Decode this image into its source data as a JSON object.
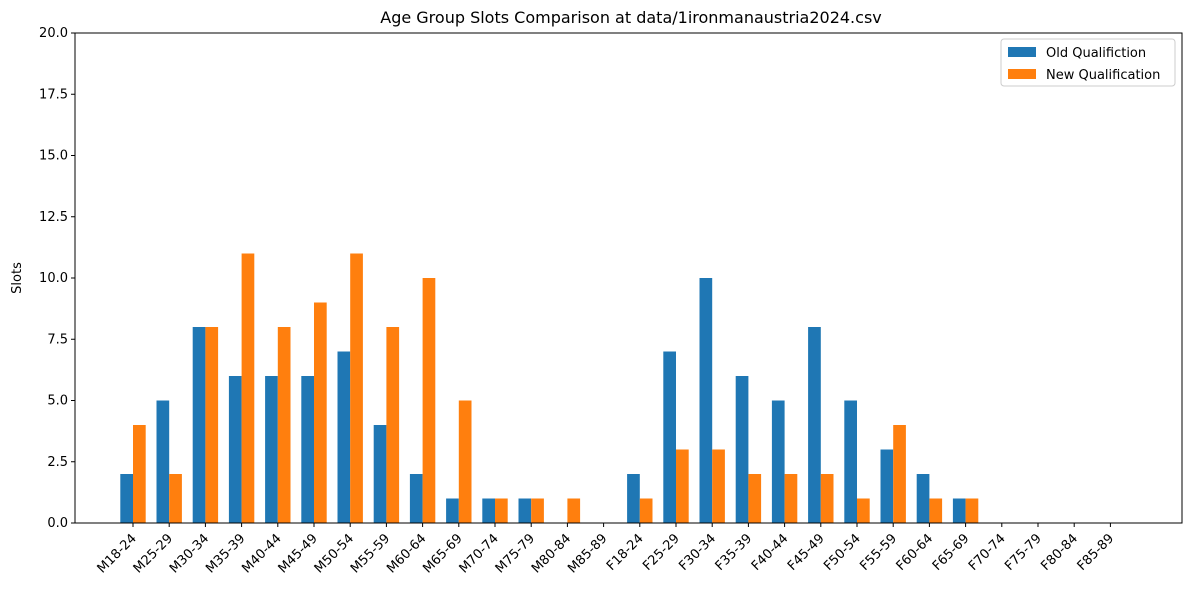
{
  "chart_data": {
    "type": "bar",
    "title": "Age Group Slots Comparison at data/1ironmanaustria2024.csv",
    "xlabel": "",
    "ylabel": "Slots",
    "ylim": [
      0,
      20
    ],
    "yticks": [
      0.0,
      2.5,
      5.0,
      7.5,
      10.0,
      12.5,
      15.0,
      17.5,
      20.0
    ],
    "ytick_labels": [
      "0.0",
      "2.5",
      "5.0",
      "7.5",
      "10.0",
      "12.5",
      "15.0",
      "17.5",
      "20.0"
    ],
    "categories": [
      "M18-24",
      "M25-29",
      "M30-34",
      "M35-39",
      "M40-44",
      "M45-49",
      "M50-54",
      "M55-59",
      "M60-64",
      "M65-69",
      "M70-74",
      "M75-79",
      "M80-84",
      "M85-89",
      "F18-24",
      "F25-29",
      "F30-34",
      "F35-39",
      "F40-44",
      "F45-49",
      "F50-54",
      "F55-59",
      "F60-64",
      "F65-69",
      "F70-74",
      "F75-79",
      "F80-84",
      "F85-89"
    ],
    "series": [
      {
        "name": "Old Qualifiction",
        "color": "#1f77b4",
        "values": [
          2,
          5,
          8,
          6,
          6,
          6,
          7,
          4,
          2,
          1,
          1,
          1,
          0,
          0,
          2,
          7,
          10,
          6,
          5,
          8,
          5,
          3,
          2,
          1,
          0,
          0,
          0,
          0
        ]
      },
      {
        "name": "New Qualification",
        "color": "#ff7f0e",
        "values": [
          4,
          2,
          8,
          11,
          8,
          9,
          11,
          8,
          10,
          5,
          1,
          1,
          1,
          0,
          1,
          3,
          3,
          2,
          2,
          2,
          1,
          4,
          1,
          1,
          0,
          0,
          0,
          0
        ]
      }
    ],
    "grid": false,
    "legend_position": "top-right"
  }
}
